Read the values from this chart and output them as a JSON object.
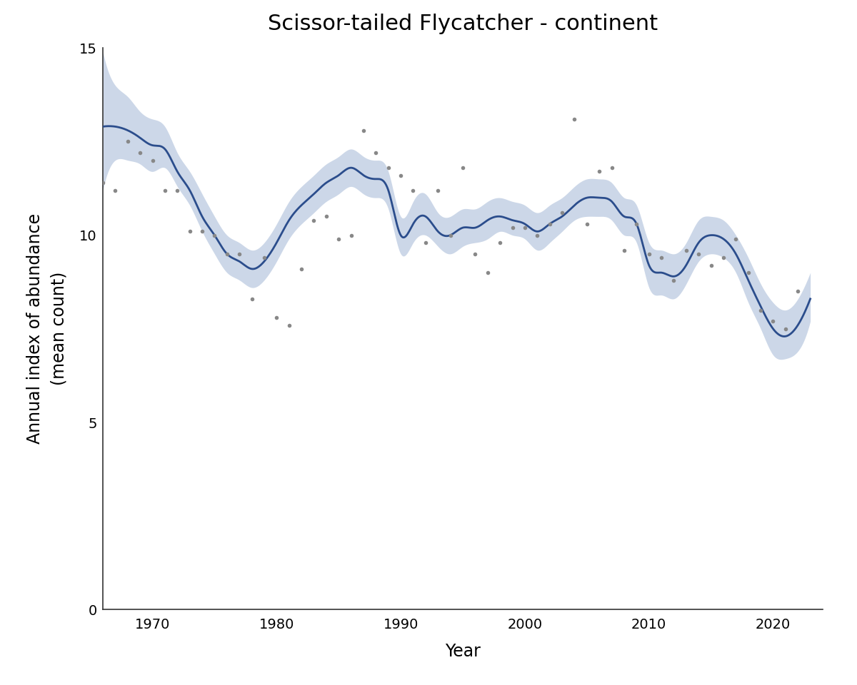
{
  "title": "Scissor-tailed Flycatcher - continent",
  "xlabel": "Year",
  "ylabel": "Annual index of abundance\n(mean count)",
  "xlim": [
    1966,
    2024
  ],
  "ylim": [
    0,
    15
  ],
  "yticks": [
    0,
    5,
    10,
    15
  ],
  "xticks": [
    1970,
    1980,
    1990,
    2000,
    2010,
    2020
  ],
  "line_color": "#2b4d8c",
  "ci_color": "#8fa8cc",
  "ci_alpha": 0.45,
  "point_color": "#888888",
  "line_width": 2.0,
  "point_size": 16,
  "years": [
    1966,
    1967,
    1968,
    1969,
    1970,
    1971,
    1972,
    1973,
    1974,
    1975,
    1976,
    1977,
    1978,
    1979,
    1980,
    1981,
    1982,
    1983,
    1984,
    1985,
    1986,
    1987,
    1988,
    1989,
    1990,
    1991,
    1992,
    1993,
    1994,
    1995,
    1996,
    1997,
    1998,
    1999,
    2000,
    2001,
    2002,
    2003,
    2004,
    2005,
    2006,
    2007,
    2008,
    2009,
    2010,
    2011,
    2012,
    2013,
    2014,
    2015,
    2016,
    2017,
    2018,
    2019,
    2020,
    2021,
    2022,
    2023
  ],
  "index": [
    12.9,
    12.9,
    12.8,
    12.6,
    12.4,
    12.3,
    11.7,
    11.2,
    10.5,
    10.0,
    9.5,
    9.3,
    9.1,
    9.3,
    9.8,
    10.4,
    10.8,
    11.1,
    11.4,
    11.6,
    11.8,
    11.6,
    11.5,
    11.2,
    10.0,
    10.3,
    10.5,
    10.1,
    10.0,
    10.2,
    10.2,
    10.4,
    10.5,
    10.4,
    10.3,
    10.1,
    10.3,
    10.5,
    10.8,
    11.0,
    11.0,
    10.9,
    10.5,
    10.3,
    9.2,
    9.0,
    8.9,
    9.2,
    9.8,
    10.0,
    9.9,
    9.5,
    8.8,
    8.1,
    7.5,
    7.3,
    7.6,
    8.3
  ],
  "ci_lower": [
    11.2,
    12.0,
    12.0,
    11.9,
    11.7,
    11.8,
    11.3,
    10.8,
    10.1,
    9.5,
    9.0,
    8.8,
    8.6,
    8.8,
    9.3,
    9.9,
    10.3,
    10.6,
    10.9,
    11.1,
    11.3,
    11.1,
    11.0,
    10.7,
    9.5,
    9.8,
    10.0,
    9.7,
    9.5,
    9.7,
    9.8,
    9.9,
    10.1,
    10.0,
    9.9,
    9.6,
    9.8,
    10.1,
    10.4,
    10.5,
    10.5,
    10.4,
    10.0,
    9.8,
    8.6,
    8.4,
    8.3,
    8.7,
    9.3,
    9.5,
    9.4,
    9.0,
    8.2,
    7.5,
    6.8,
    6.7,
    6.9,
    7.7
  ],
  "ci_upper": [
    14.9,
    14.0,
    13.7,
    13.3,
    13.1,
    12.9,
    12.2,
    11.7,
    11.1,
    10.5,
    10.0,
    9.8,
    9.6,
    9.8,
    10.3,
    10.9,
    11.3,
    11.6,
    11.9,
    12.1,
    12.3,
    12.1,
    12.0,
    11.7,
    10.5,
    10.9,
    11.1,
    10.6,
    10.5,
    10.7,
    10.7,
    10.9,
    11.0,
    10.9,
    10.8,
    10.6,
    10.8,
    11.0,
    11.3,
    11.5,
    11.5,
    11.4,
    11.0,
    10.8,
    9.8,
    9.6,
    9.5,
    9.8,
    10.4,
    10.5,
    10.4,
    10.0,
    9.4,
    8.7,
    8.2,
    8.0,
    8.3,
    9.0
  ],
  "raw_years": [
    1966,
    1967,
    1968,
    1969,
    1970,
    1971,
    1972,
    1973,
    1974,
    1975,
    1976,
    1977,
    1978,
    1979,
    1980,
    1981,
    1982,
    1983,
    1984,
    1985,
    1986,
    1987,
    1988,
    1989,
    1990,
    1991,
    1992,
    1993,
    1994,
    1995,
    1996,
    1997,
    1998,
    1999,
    2000,
    2001,
    2002,
    2003,
    2004,
    2005,
    2006,
    2007,
    2008,
    2009,
    2010,
    2011,
    2012,
    2013,
    2014,
    2015,
    2016,
    2017,
    2018,
    2019,
    2020,
    2021,
    2022,
    2023
  ],
  "raw_counts": [
    11.4,
    11.2,
    12.5,
    12.2,
    12.0,
    11.2,
    11.2,
    10.1,
    10.1,
    10.0,
    9.5,
    9.5,
    8.3,
    9.4,
    7.8,
    7.6,
    9.1,
    10.4,
    10.5,
    9.9,
    10.0,
    12.8,
    12.2,
    11.8,
    11.6,
    11.2,
    9.8,
    11.2,
    10.0,
    11.8,
    9.5,
    9.0,
    9.8,
    10.2,
    10.2,
    10.0,
    10.3,
    10.6,
    13.1,
    10.3,
    11.7,
    11.8,
    9.6,
    10.3,
    9.5,
    9.4,
    8.8,
    9.6,
    9.5,
    9.2,
    9.4,
    9.9,
    9.0,
    8.0,
    7.7,
    7.5,
    8.5,
    null
  ]
}
